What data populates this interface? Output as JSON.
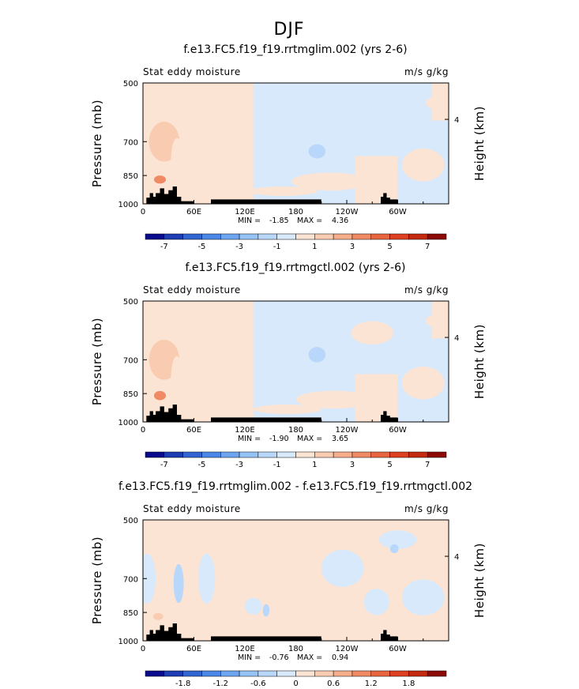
{
  "page_title": "DJF",
  "chart_data": [
    {
      "type": "heatmap",
      "title": "f.e13.FC5.f19_f19.rrtmglim.002 (yrs 2-6)",
      "left_label": "Stat eddy moisture",
      "right_label": "m/s g/kg",
      "xlabel": "",
      "ylabel": "Pressure (mb)",
      "y2label": "Height (km)",
      "x_ticks": [
        "0",
        "60E",
        "120E",
        "180",
        "120W",
        "60W"
      ],
      "x_tick_values": [
        0,
        60,
        120,
        180,
        240,
        300
      ],
      "xlim": [
        0,
        360
      ],
      "y_ticks": [
        "500",
        "700",
        "850",
        "1000"
      ],
      "y_tick_values": [
        500,
        700,
        850,
        1000
      ],
      "y2_ticks": [
        "4"
      ],
      "ylim": [
        1000,
        500
      ],
      "y_scale": "log-pressure",
      "min_label": "MIN =",
      "min_value": "-1.85",
      "max_label": "MAX =",
      "max_value": "4.36",
      "colorbar_levels": [
        -8,
        -7,
        -6,
        -5,
        -4,
        -3,
        -2,
        -1,
        0,
        1,
        2,
        3,
        4,
        5,
        6,
        7,
        8
      ],
      "colorbar_labels": [
        "-7",
        "-5",
        "-3",
        "-1",
        "1",
        "3",
        "5",
        "7"
      ],
      "blobs": [
        {
          "lon": 10,
          "p": 560,
          "rx": 12,
          "ry": 50,
          "level": 1
        },
        {
          "lon": 25,
          "p": 700,
          "rx": 18,
          "ry": 160,
          "level": 2
        },
        {
          "lon": 20,
          "p": 870,
          "rx": 7,
          "ry": 40,
          "level": 4
        },
        {
          "lon": 40,
          "p": 780,
          "rx": 7,
          "ry": 200,
          "level": 1
        },
        {
          "lon": 100,
          "p": 560,
          "rx": 8,
          "ry": 50,
          "level": 1
        },
        {
          "lon": 205,
          "p": 740,
          "rx": 10,
          "ry": 60,
          "level": -2
        },
        {
          "lon": 165,
          "p": 930,
          "rx": 40,
          "ry": 50,
          "level": 1
        },
        {
          "lon": 220,
          "p": 880,
          "rx": 45,
          "ry": 90,
          "level": 1
        },
        {
          "lon": 275,
          "p": 830,
          "rx": 25,
          "ry": 120,
          "level": 1
        },
        {
          "lon": 318,
          "p": 540,
          "rx": 20,
          "ry": 60,
          "level": -1
        },
        {
          "lon": 330,
          "p": 800,
          "rx": 25,
          "ry": 150,
          "level": 1
        },
        {
          "lon": 345,
          "p": 560,
          "rx": 12,
          "ry": 40,
          "level": 1
        }
      ]
    },
    {
      "type": "heatmap",
      "title": "f.e13.FC5.f19_f19.rrtmgctl.002 (yrs 2-6)",
      "left_label": "Stat eddy moisture",
      "right_label": "m/s g/kg",
      "xlabel": "",
      "ylabel": "Pressure (mb)",
      "y2label": "Height (km)",
      "x_ticks": [
        "0",
        "60E",
        "120E",
        "180",
        "120W",
        "60W"
      ],
      "x_tick_values": [
        0,
        60,
        120,
        180,
        240,
        300
      ],
      "xlim": [
        0,
        360
      ],
      "y_ticks": [
        "500",
        "700",
        "850",
        "1000"
      ],
      "y_tick_values": [
        500,
        700,
        850,
        1000
      ],
      "y2_ticks": [
        "4"
      ],
      "ylim": [
        1000,
        500
      ],
      "y_scale": "log-pressure",
      "min_label": "MIN =",
      "min_value": "-1.90",
      "max_label": "MAX =",
      "max_value": "3.65",
      "colorbar_levels": [
        -8,
        -7,
        -6,
        -5,
        -4,
        -3,
        -2,
        -1,
        0,
        1,
        2,
        3,
        4,
        5,
        6,
        7,
        8
      ],
      "colorbar_labels": [
        "-7",
        "-5",
        "-3",
        "-1",
        "1",
        "3",
        "5",
        "7"
      ],
      "blobs": [
        {
          "lon": 10,
          "p": 560,
          "rx": 12,
          "ry": 50,
          "level": 1
        },
        {
          "lon": 25,
          "p": 700,
          "rx": 18,
          "ry": 160,
          "level": 2
        },
        {
          "lon": 20,
          "p": 860,
          "rx": 7,
          "ry": 45,
          "level": 4
        },
        {
          "lon": 40,
          "p": 780,
          "rx": 7,
          "ry": 200,
          "level": 1
        },
        {
          "lon": 100,
          "p": 560,
          "rx": 8,
          "ry": 50,
          "level": 1
        },
        {
          "lon": 205,
          "p": 680,
          "rx": 10,
          "ry": 60,
          "level": -2
        },
        {
          "lon": 170,
          "p": 930,
          "rx": 40,
          "ry": 50,
          "level": 1
        },
        {
          "lon": 225,
          "p": 880,
          "rx": 45,
          "ry": 90,
          "level": 1
        },
        {
          "lon": 270,
          "p": 600,
          "rx": 25,
          "ry": 80,
          "level": 1
        },
        {
          "lon": 315,
          "p": 540,
          "rx": 20,
          "ry": 60,
          "level": -1
        },
        {
          "lon": 330,
          "p": 800,
          "rx": 25,
          "ry": 150,
          "level": 1
        },
        {
          "lon": 345,
          "p": 560,
          "rx": 12,
          "ry": 40,
          "level": 1
        }
      ]
    },
    {
      "type": "heatmap",
      "title": "f.e13.FC5.f19_f19.rrtmglim.002 - f.e13.FC5.f19_f19.rrtmgctl.002",
      "left_label": "Stat eddy moisture",
      "right_label": "m/s g/kg",
      "xlabel": "",
      "ylabel": "Pressure (mb)",
      "y2label": "Height (km)",
      "x_ticks": [
        "0",
        "60E",
        "120E",
        "180",
        "120W",
        "60W"
      ],
      "x_tick_values": [
        0,
        60,
        120,
        180,
        240,
        300
      ],
      "xlim": [
        0,
        360
      ],
      "y_ticks": [
        "500",
        "700",
        "850",
        "1000"
      ],
      "y_tick_values": [
        500,
        700,
        850,
        1000
      ],
      "y2_ticks": [
        "4"
      ],
      "ylim": [
        1000,
        500
      ],
      "y_scale": "log-pressure",
      "min_label": "MIN =",
      "min_value": "-0.76",
      "max_label": "MAX =",
      "max_value": "0.94",
      "colorbar_levels": [
        -2.4,
        -2.1,
        -1.8,
        -1.5,
        -1.2,
        -0.9,
        -0.6,
        -0.3,
        0,
        0.3,
        0.6,
        0.9,
        1.2,
        1.5,
        1.8,
        2.1,
        2.4
      ],
      "colorbar_labels": [
        "-1.8",
        "-1.2",
        "-0.6",
        "0",
        "0.6",
        "1.2",
        "1.8"
      ],
      "blobs": [
        {
          "lon": 5,
          "p": 700,
          "rx": 10,
          "ry": 200,
          "level": -1
        },
        {
          "lon": 42,
          "p": 720,
          "rx": 6,
          "ry": 160,
          "level": -2
        },
        {
          "lon": 18,
          "p": 870,
          "rx": 6,
          "ry": 35,
          "level": 2
        },
        {
          "lon": 30,
          "p": 620,
          "rx": 8,
          "ry": 60,
          "level": 1
        },
        {
          "lon": 75,
          "p": 700,
          "rx": 10,
          "ry": 200,
          "level": -1
        },
        {
          "lon": 130,
          "p": 820,
          "rx": 10,
          "ry": 80,
          "level": -1
        },
        {
          "lon": 145,
          "p": 840,
          "rx": 4,
          "ry": 60,
          "level": -2
        },
        {
          "lon": 235,
          "p": 660,
          "rx": 25,
          "ry": 140,
          "level": -1
        },
        {
          "lon": 300,
          "p": 560,
          "rx": 22,
          "ry": 60,
          "level": -1
        },
        {
          "lon": 296,
          "p": 590,
          "rx": 5,
          "ry": 30,
          "level": -2
        },
        {
          "lon": 275,
          "p": 800,
          "rx": 15,
          "ry": 120,
          "level": -1
        },
        {
          "lon": 330,
          "p": 780,
          "rx": 25,
          "ry": 160,
          "level": -1
        }
      ]
    }
  ],
  "colorbar_colors": [
    "#0a0a8c",
    "#1e3cb4",
    "#3264d2",
    "#4b87e6",
    "#6ea5f0",
    "#96c3f5",
    "#b9d7fa",
    "#d7e9fb",
    "#fce4d4",
    "#f9ccb1",
    "#f5ad8c",
    "#f08a64",
    "#e8653f",
    "#dd4121",
    "#c42a0f",
    "#8c0a05"
  ],
  "topography": [
    [
      0,
      1000
    ],
    [
      4,
      1000
    ],
    [
      4,
      965
    ],
    [
      8,
      965
    ],
    [
      8,
      940
    ],
    [
      12,
      940
    ],
    [
      12,
      960
    ],
    [
      15,
      960
    ],
    [
      15,
      940
    ],
    [
      20,
      940
    ],
    [
      20,
      915
    ],
    [
      25,
      915
    ],
    [
      25,
      945
    ],
    [
      30,
      945
    ],
    [
      30,
      925
    ],
    [
      35,
      925
    ],
    [
      35,
      905
    ],
    [
      40,
      905
    ],
    [
      40,
      960
    ],
    [
      45,
      960
    ],
    [
      45,
      985
    ],
    [
      60,
      985
    ],
    [
      60,
      1000
    ],
    [
      80,
      1000
    ],
    [
      80,
      975
    ],
    [
      210,
      975
    ],
    [
      210,
      1000
    ],
    [
      280,
      1000
    ],
    [
      280,
      960
    ],
    [
      283,
      960
    ],
    [
      283,
      940
    ],
    [
      287,
      940
    ],
    [
      287,
      965
    ],
    [
      291,
      965
    ],
    [
      291,
      975
    ],
    [
      300,
      975
    ],
    [
      300,
      1000
    ],
    [
      360,
      1000
    ]
  ]
}
